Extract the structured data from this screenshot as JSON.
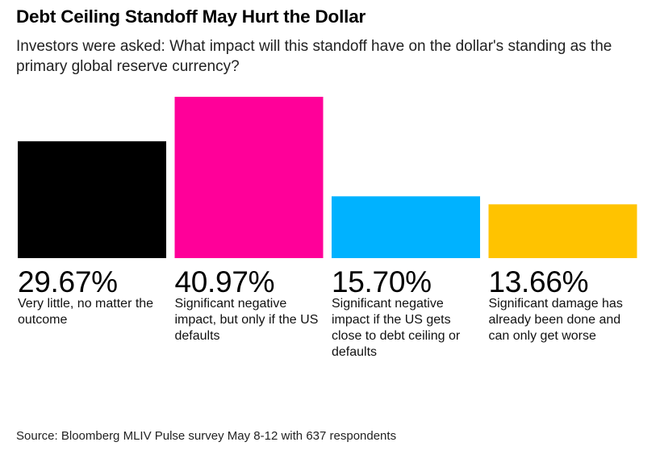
{
  "title": "Debt Ceiling Standoff May Hurt the Dollar",
  "subtitle": "Investors were asked: What impact will this standoff have on the dollar's standing as the primary global reserve currency?",
  "source": "Source: Bloomberg MLIV Pulse survey May 8-12 with 637 respondents",
  "chart_data": {
    "type": "bar",
    "title": "",
    "xlabel": "",
    "ylabel": "",
    "grid": false,
    "categories": [
      "Very little, no matter the outcome",
      "Significant negative impact, but only if the US defaults",
      "Significant negative impact if the US gets close to debt ceiling or defaults",
      "Significant damage has already been done and can only get worse"
    ],
    "values": [
      29.67,
      40.97,
      15.7,
      13.66
    ],
    "value_labels": [
      "29.67%",
      "40.97%",
      "15.70%",
      "13.66%"
    ],
    "colors": [
      "#000000",
      "#ff0099",
      "#00b2ff",
      "#ffc300"
    ]
  }
}
